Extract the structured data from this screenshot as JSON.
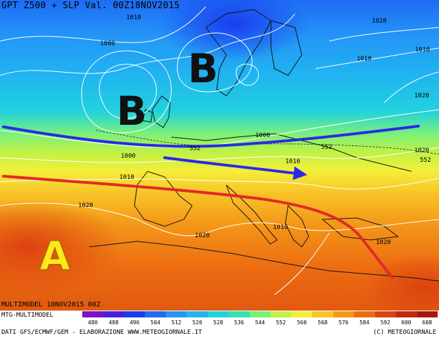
{
  "header": {
    "title": "GPT Z500 + SLP Val. 00Z18NOV2015"
  },
  "footer": {
    "run": "MULTIMODEL 10NOV2015 00Z",
    "model": "MTG-MULTIMODEL",
    "source": "DATI GFS/ECMWF/GEM - ELABORAZIONE WWW.METEOGIORNALE.IT",
    "copyright": "(C) METEOGIORNALE"
  },
  "legend": {
    "values": [
      "480",
      "488",
      "496",
      "504",
      "512",
      "520",
      "528",
      "536",
      "544",
      "552",
      "560",
      "568",
      "576",
      "584",
      "592",
      "600",
      "608"
    ],
    "colors": [
      "#7a12c8",
      "#4a1ee0",
      "#1a3ef0",
      "#1e6cf4",
      "#2496f6",
      "#20b6f0",
      "#22d2dc",
      "#32e2b2",
      "#7af07a",
      "#bff246",
      "#f4ee3a",
      "#f8c428",
      "#f49818",
      "#ec6c12",
      "#dc4210",
      "#c02a0e",
      "#a8180e"
    ]
  },
  "map": {
    "high_labels": [
      "A"
    ],
    "low_labels": [
      "B",
      "B"
    ],
    "isobar_labels": [
      "1010",
      "1000",
      "1010",
      "1020",
      "1010",
      "1000",
      "1010",
      "1020",
      "1020",
      "1010",
      "1000",
      "1020",
      "1020",
      "1010",
      "1020"
    ],
    "geopotential_labels": [
      "552",
      "552",
      "552"
    ]
  }
}
